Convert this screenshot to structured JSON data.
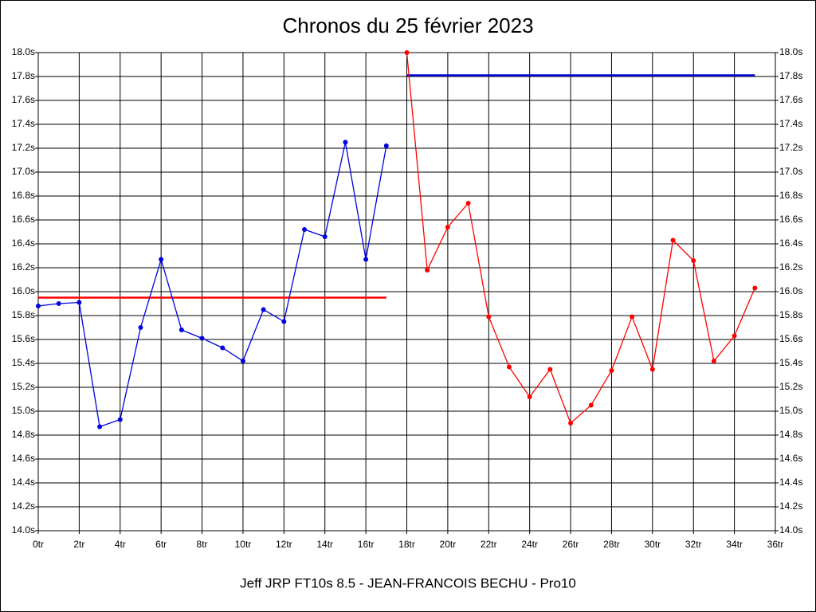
{
  "chart_data": {
    "type": "line",
    "title": "Chronos du 25 février 2023",
    "subtitle": "Jeff JRP FT10s 8.5 - JEAN-FRANCOIS BECHU - Pro10",
    "xlim": [
      0,
      36
    ],
    "ylim": [
      14.0,
      18.0
    ],
    "xticks": [
      {
        "value": 0,
        "label": "0tr"
      },
      {
        "value": 2,
        "label": "2tr"
      },
      {
        "value": 4,
        "label": "4tr"
      },
      {
        "value": 6,
        "label": "6tr"
      },
      {
        "value": 8,
        "label": "8tr"
      },
      {
        "value": 10,
        "label": "10tr"
      },
      {
        "value": 12,
        "label": "12tr"
      },
      {
        "value": 14,
        "label": "14tr"
      },
      {
        "value": 16,
        "label": "16tr"
      },
      {
        "value": 18,
        "label": "18tr"
      },
      {
        "value": 20,
        "label": "20tr"
      },
      {
        "value": 22,
        "label": "22tr"
      },
      {
        "value": 24,
        "label": "24tr"
      },
      {
        "value": 26,
        "label": "26tr"
      },
      {
        "value": 28,
        "label": "28tr"
      },
      {
        "value": 30,
        "label": "30tr"
      },
      {
        "value": 32,
        "label": "32tr"
      },
      {
        "value": 34,
        "label": "34tr"
      },
      {
        "value": 36,
        "label": "36tr"
      }
    ],
    "yticks": [
      {
        "value": 14.0,
        "label": "14.0s"
      },
      {
        "value": 14.2,
        "label": "14.2s"
      },
      {
        "value": 14.4,
        "label": "14.4s"
      },
      {
        "value": 14.6,
        "label": "14.6s"
      },
      {
        "value": 14.8,
        "label": "14.8s"
      },
      {
        "value": 15.0,
        "label": "15.0s"
      },
      {
        "value": 15.2,
        "label": "15.2s"
      },
      {
        "value": 15.4,
        "label": "15.4s"
      },
      {
        "value": 15.6,
        "label": "15.6s"
      },
      {
        "value": 15.8,
        "label": "15.8s"
      },
      {
        "value": 16.0,
        "label": "16.0s"
      },
      {
        "value": 16.2,
        "label": "16.2s"
      },
      {
        "value": 16.4,
        "label": "16.4s"
      },
      {
        "value": 16.6,
        "label": "16.6s"
      },
      {
        "value": 16.8,
        "label": "16.8s"
      },
      {
        "value": 17.0,
        "label": "17.0s"
      },
      {
        "value": 17.2,
        "label": "17.2s"
      },
      {
        "value": 17.4,
        "label": "17.4s"
      },
      {
        "value": 17.6,
        "label": "17.6s"
      },
      {
        "value": 17.8,
        "label": "17.8s"
      },
      {
        "value": 18.0,
        "label": "18.0s"
      }
    ],
    "grid": true,
    "series": [
      {
        "color": "#0000e0",
        "x": [
          0,
          1,
          2,
          3,
          4,
          5,
          6,
          7,
          8,
          9,
          10,
          11,
          12,
          13,
          14,
          15,
          16,
          17
        ],
        "values": [
          15.88,
          15.9,
          15.91,
          14.87,
          14.93,
          15.7,
          16.27,
          15.68,
          15.61,
          15.53,
          15.42,
          15.85,
          15.75,
          16.52,
          16.46,
          17.25,
          16.27,
          17.22
        ]
      },
      {
        "color": "#ff0000",
        "x": [
          18,
          19,
          20,
          21,
          22,
          23,
          24,
          25,
          26,
          27,
          28,
          29,
          30,
          31,
          32,
          33,
          34,
          35
        ],
        "values": [
          18.0,
          16.18,
          16.54,
          16.74,
          15.79,
          15.37,
          15.12,
          15.35,
          14.9,
          15.05,
          15.34,
          15.79,
          15.35,
          16.43,
          16.26,
          15.42,
          15.63,
          16.03
        ]
      }
    ],
    "reference_lines": [
      {
        "color": "#ff0000",
        "value": 15.95,
        "x": [
          0,
          17
        ]
      },
      {
        "color": "#0000e0",
        "value": 17.81,
        "x": [
          18,
          35
        ]
      }
    ]
  }
}
